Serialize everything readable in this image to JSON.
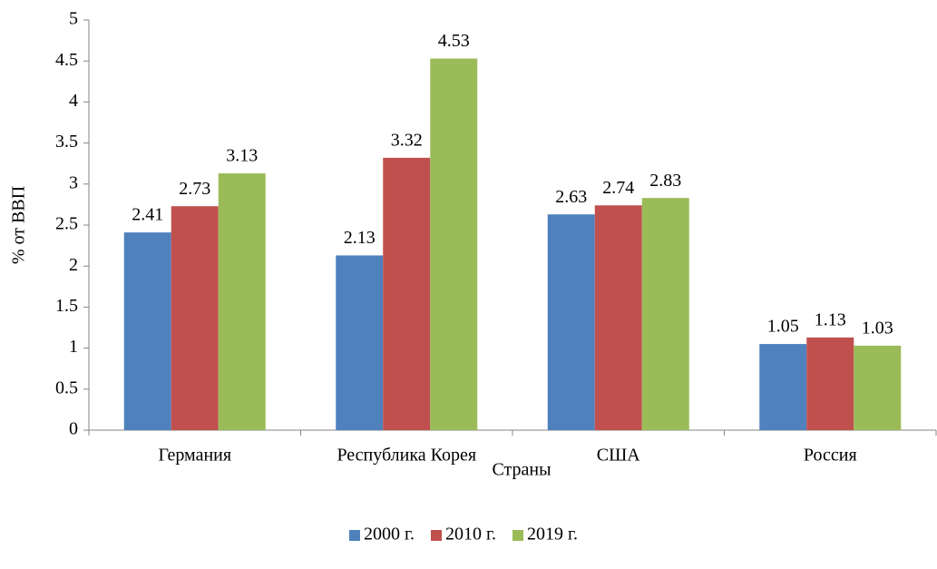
{
  "chart_data": {
    "type": "bar",
    "categories": [
      "Германия",
      "Республика Корея",
      "США",
      "Россия"
    ],
    "series": [
      {
        "name": "2000 г.",
        "color": "#4f81bd",
        "values": [
          2.41,
          2.13,
          2.63,
          1.05
        ]
      },
      {
        "name": "2010 г.",
        "color": "#c0504d",
        "values": [
          2.73,
          3.32,
          2.74,
          1.13
        ]
      },
      {
        "name": "2019 г.",
        "color": "#9bbb59",
        "values": [
          3.13,
          4.53,
          2.83,
          1.03
        ]
      }
    ],
    "x_label": "Страны",
    "y_label": "% от ВВП",
    "ylim": [
      0,
      5
    ],
    "yticks": [
      0,
      0.5,
      1,
      1.5,
      2,
      2.5,
      3,
      3.5,
      4,
      4.5,
      5
    ],
    "legend": "bottom"
  }
}
